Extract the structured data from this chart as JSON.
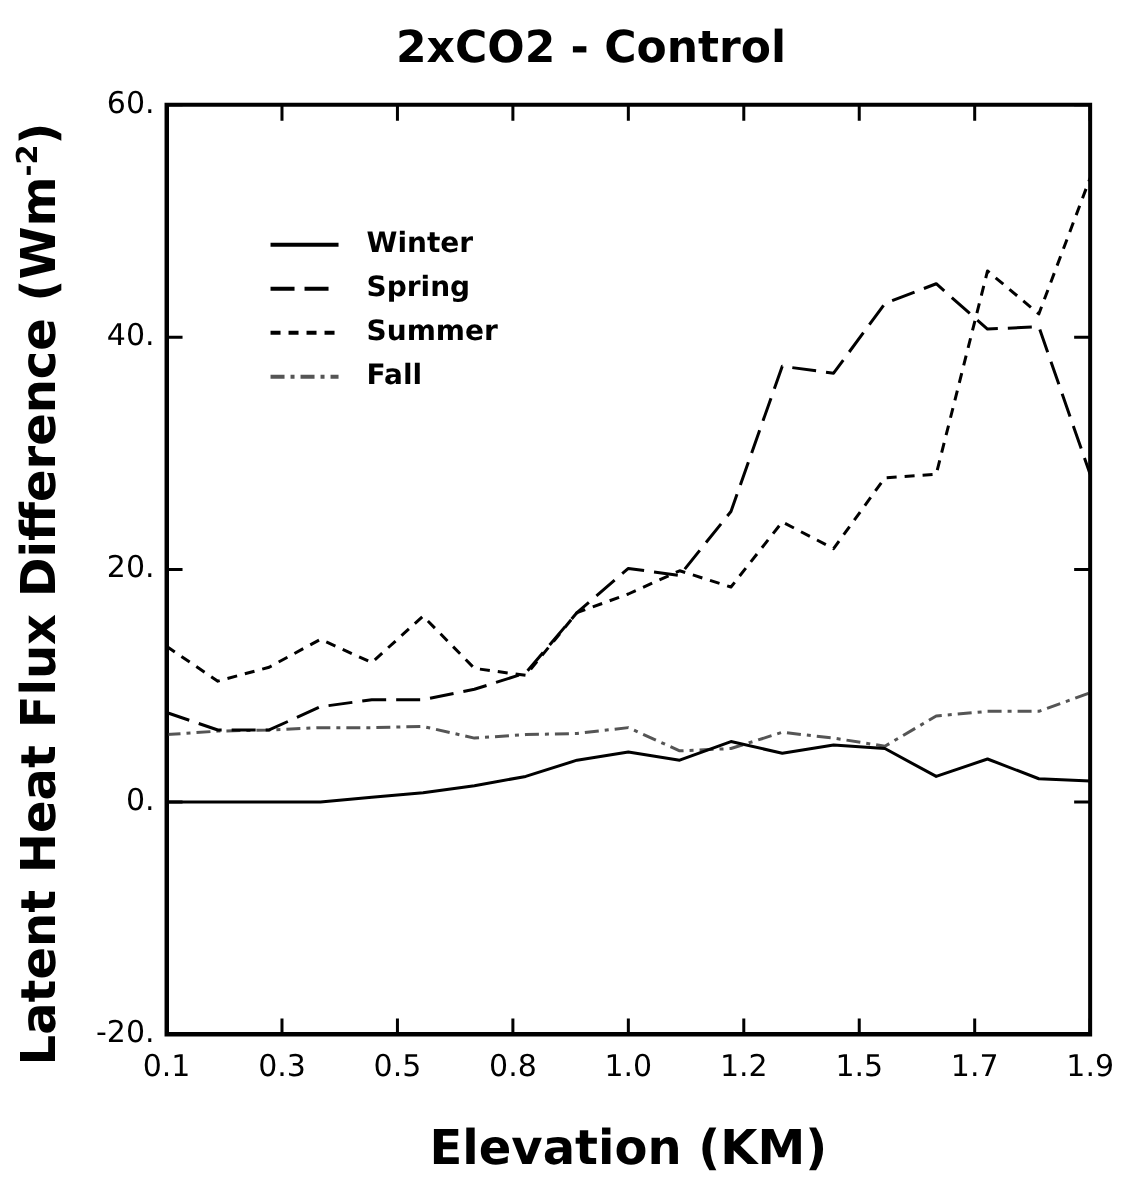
{
  "chart_data": {
    "type": "line",
    "title": "2xCO2 - Control",
    "xlabel": "Elevation (KM)",
    "ylabel": "Latent Heat Flux Difference (Wm$^{-2}$)",
    "x": [
      0.1,
      0.2,
      0.3,
      0.4,
      0.5,
      0.6,
      0.7,
      0.8,
      0.9,
      1.0,
      1.1,
      1.2,
      1.3,
      1.4,
      1.5,
      1.6,
      1.7,
      1.8,
      1.9
    ],
    "xlim": [
      0.1,
      1.9
    ],
    "xticks": [
      {
        "value": 0.1,
        "label": "0.1"
      },
      {
        "value": 0.325,
        "label": "0.3"
      },
      {
        "value": 0.55,
        "label": "0.5"
      },
      {
        "value": 0.775,
        "label": "0.8"
      },
      {
        "value": 1.0,
        "label": "1.0"
      },
      {
        "value": 1.225,
        "label": "1.2"
      },
      {
        "value": 1.45,
        "label": "1.5"
      },
      {
        "value": 1.675,
        "label": "1.7"
      },
      {
        "value": 1.9,
        "label": "1.9"
      }
    ],
    "ylim": [
      -20,
      60
    ],
    "yticks": [
      {
        "value": -20,
        "label": "-20."
      },
      {
        "value": 0,
        "label": "0."
      },
      {
        "value": 20,
        "label": "20."
      },
      {
        "value": 40,
        "label": "40."
      },
      {
        "value": 60,
        "label": "60."
      }
    ],
    "grid": false,
    "legend": "top left",
    "marker": "none",
    "series": [
      {
        "name": "Winter",
        "color": "#000000",
        "line_style": "solid",
        "values": [
          0,
          0,
          0,
          0,
          0.4,
          0.8,
          1.4,
          2.2,
          3.6,
          4.3,
          3.6,
          5.2,
          4.2,
          4.9,
          4.6,
          2.2,
          3.7,
          2.0,
          1.8
        ]
      },
      {
        "name": "Spring",
        "color": "#000000",
        "line_style": "dashed",
        "values": [
          7.7,
          6.2,
          6.2,
          8.2,
          8.8,
          8.8,
          9.7,
          11.1,
          16.3,
          20.1,
          19.5,
          25.0,
          37.5,
          36.9,
          42.9,
          44.6,
          40.7,
          40.9,
          28.2
        ]
      },
      {
        "name": "Summer",
        "color": "#000000",
        "line_style": "dotted",
        "values": [
          13.4,
          10.4,
          11.6,
          14.0,
          12.0,
          16.0,
          11.5,
          10.9,
          16.3,
          17.9,
          19.9,
          18.5,
          24.1,
          21.8,
          27.9,
          28.2,
          45.7,
          42.0,
          53.7
        ]
      },
      {
        "name": "Fall",
        "color": "#555555",
        "line_style": "dashdot",
        "values": [
          5.8,
          6.1,
          6.2,
          6.4,
          6.4,
          6.5,
          5.5,
          5.8,
          5.9,
          6.4,
          4.4,
          4.6,
          6.0,
          5.5,
          4.8,
          7.4,
          7.8,
          7.8,
          9.4
        ]
      }
    ]
  }
}
